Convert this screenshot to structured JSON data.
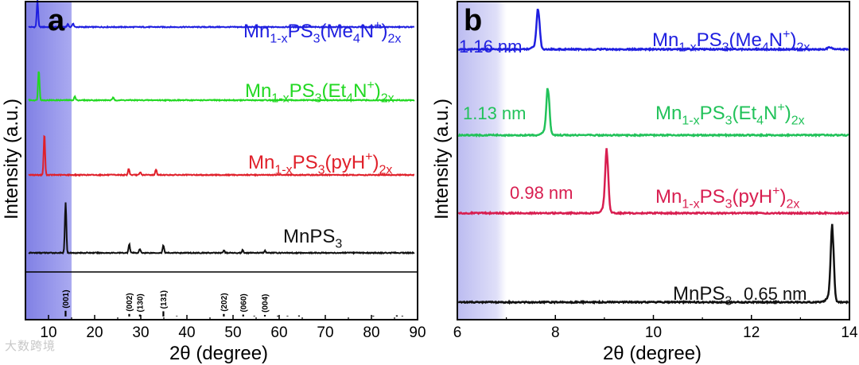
{
  "watermark": "大数跨境",
  "chart_data": [
    {
      "panel_label": "a",
      "type": "line",
      "xlabel": "2θ (degree)",
      "ylabel": "Intensity (a.u.)",
      "xlim": [
        5,
        90
      ],
      "xticks": [
        10,
        20,
        30,
        40,
        50,
        60,
        70,
        80,
        90
      ],
      "highlight_region": [
        5,
        15
      ],
      "series": [
        {
          "name": "Mn1-xPS3(Me4N+)2x",
          "label_html": [
            "Mn",
            "1-x",
            "PS",
            "3",
            "(Me",
            "4",
            "N",
            "+",
            ")",
            "2x"
          ],
          "color": "#1f1fe0",
          "baseline": 0.92,
          "peaks": [
            [
              7.6,
              0.085
            ],
            [
              14.2,
              0.01
            ],
            [
              15.3,
              0.012
            ]
          ]
        },
        {
          "name": "Mn1-xPS3(Et4N+)2x",
          "label_html": [
            "Mn",
            "1-x",
            "PS",
            "3",
            "(Et",
            "4",
            "N",
            "+",
            ")",
            "2x"
          ],
          "color": "#22d822",
          "baseline": 0.69,
          "peaks": [
            [
              7.9,
              0.095
            ],
            [
              15.7,
              0.012
            ],
            [
              24.0,
              0.008
            ]
          ]
        },
        {
          "name": "Mn1-xPS3(pyH+)2x",
          "label_html": [
            "Mn",
            "1-x",
            "PS",
            "3",
            "(pyH",
            "",
            "",
            "+",
            ")",
            "2x"
          ],
          "color": "#e0202a",
          "baseline": 0.455,
          "peaks": [
            [
              9.1,
              0.13
            ],
            [
              27.4,
              0.02
            ],
            [
              29.9,
              0.008
            ],
            [
              33.3,
              0.018
            ]
          ]
        },
        {
          "name": "MnPS3",
          "label_html": [
            "MnPS",
            "",
            "",
            "3",
            "",
            "",
            "",
            "",
            "",
            ""
          ],
          "color": "#111111",
          "baseline": 0.21,
          "peaks": [
            [
              13.7,
              0.16
            ],
            [
              27.5,
              0.028
            ],
            [
              29.8,
              0.012
            ],
            [
              34.9,
              0.024
            ],
            [
              48.0,
              0.008
            ],
            [
              52.1,
              0.009
            ],
            [
              56.9,
              0.007
            ]
          ]
        }
      ],
      "reference_sticks": [
        {
          "x": 13.7,
          "height": 0.9,
          "hkl": "(001)"
        },
        {
          "x": 27.5,
          "height": 0.4,
          "hkl": "(002)"
        },
        {
          "x": 29.8,
          "height": 0.3,
          "hkl": "(130)"
        },
        {
          "x": 34.9,
          "height": 0.82,
          "hkl": "(131)"
        },
        {
          "x": 37.8,
          "height": 0.08,
          "hkl": ""
        },
        {
          "x": 48.0,
          "height": 0.4,
          "hkl": "(202)"
        },
        {
          "x": 52.2,
          "height": 0.3,
          "hkl": "(060)"
        },
        {
          "x": 54.6,
          "height": 0.1,
          "hkl": ""
        },
        {
          "x": 56.9,
          "height": 0.25,
          "hkl": "(004)"
        },
        {
          "x": 59.7,
          "height": 0.12,
          "hkl": ""
        },
        {
          "x": 61.8,
          "height": 0.1,
          "hkl": ""
        },
        {
          "x": 64.3,
          "height": 0.16,
          "hkl": ""
        },
        {
          "x": 80.4,
          "height": 0.12,
          "hkl": ""
        },
        {
          "x": 85.5,
          "height": 0.18,
          "hkl": ""
        },
        {
          "x": 86.7,
          "height": 0.1,
          "hkl": ""
        }
      ]
    },
    {
      "panel_label": "b",
      "type": "line",
      "xlabel": "2θ (degree)",
      "ylabel": "Intensity (a.u.)",
      "xlim": [
        6,
        14
      ],
      "xticks": [
        6,
        8,
        10,
        12,
        14
      ],
      "highlight_region": [
        6,
        7
      ],
      "series": [
        {
          "name": "Mn1-xPS3(Me4N+)2x",
          "label_html": [
            "Mn",
            "1-x",
            "PS",
            "3",
            "(Me",
            "4",
            "N",
            "+",
            ")",
            "2x"
          ],
          "color": "#1f1fe0",
          "baseline": 0.85,
          "peak": 7.65,
          "peak_height": 0.12,
          "d_spacing": "1.16 nm",
          "extra_bump": 13.6
        },
        {
          "name": "Mn1-xPS3(Et4N+)2x",
          "label_html": [
            "Mn",
            "1-x",
            "PS",
            "3",
            "(Et",
            "4",
            "N",
            "+",
            ")",
            "2x"
          ],
          "color": "#22c25a",
          "baseline": 0.58,
          "peak": 7.85,
          "peak_height": 0.14,
          "d_spacing": "1.13 nm"
        },
        {
          "name": "Mn1-xPS3(pyH+)2x",
          "label_html": [
            "Mn",
            "1-x",
            "PS",
            "3",
            "(pyH",
            "",
            "",
            "+",
            ")",
            "2x"
          ],
          "color": "#d81e50",
          "baseline": 0.335,
          "peak": 9.05,
          "peak_height": 0.185,
          "d_spacing": "0.98 nm"
        },
        {
          "name": "MnPS3",
          "label_html": [
            "MnPS",
            "",
            "",
            "3",
            "",
            "",
            "",
            "",
            "",
            ""
          ],
          "color": "#111111",
          "baseline": 0.055,
          "peak": 13.65,
          "peak_height": 0.22,
          "d_spacing": "0.65 nm"
        }
      ]
    }
  ]
}
